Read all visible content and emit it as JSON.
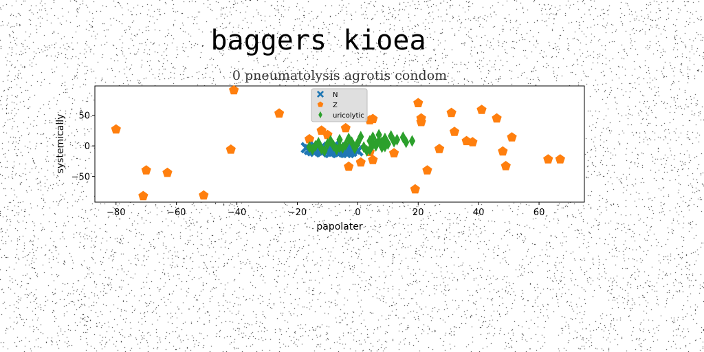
{
  "chart_data": {
    "type": "scatter",
    "title": "baggers kioea",
    "subtitle": "0 pneumatolysis agrotis condom",
    "xlabel": "papolater",
    "ylabel": "systemically",
    "xlim": [
      -87,
      75
    ],
    "ylim": [
      -92,
      98
    ],
    "xticks": [
      -80,
      -60,
      -40,
      -20,
      0,
      20,
      40,
      60
    ],
    "yticks": [
      -50,
      0,
      50
    ],
    "grid": false,
    "legend_position": "upper-center",
    "series": [
      {
        "name": "N",
        "marker": "x",
        "color": "#1f77b4",
        "points": [
          [
            -17,
            -3
          ],
          [
            -15,
            -8
          ],
          [
            -14,
            -2
          ],
          [
            -13,
            -6
          ],
          [
            -12,
            -10
          ],
          [
            -11,
            -4
          ],
          [
            -10,
            -8
          ],
          [
            -9,
            -3
          ],
          [
            -8,
            -9
          ],
          [
            -7,
            -5
          ],
          [
            -6,
            -10
          ],
          [
            -5,
            -4
          ],
          [
            -4,
            -7
          ],
          [
            -3,
            -2
          ],
          [
            -2,
            -9
          ],
          [
            -1,
            -5
          ],
          [
            0,
            -8
          ],
          [
            -16,
            -6
          ],
          [
            -12,
            -2
          ],
          [
            -9,
            -11
          ],
          [
            -6,
            -3
          ],
          [
            -3,
            -11
          ],
          [
            -14,
            -9
          ],
          [
            -8,
            -1
          ],
          [
            -5,
            -8
          ],
          [
            -1,
            -2
          ],
          [
            -11,
            -7
          ],
          [
            -7,
            -10
          ],
          [
            -2,
            -4
          ],
          [
            -4,
            -11
          ]
        ]
      },
      {
        "name": "Z",
        "marker": "pentagon",
        "color": "#ff7f0e",
        "points": [
          [
            -80,
            27
          ],
          [
            -71,
            -82
          ],
          [
            -70,
            -40
          ],
          [
            -63,
            -44
          ],
          [
            -51,
            -81
          ],
          [
            -42,
            -6
          ],
          [
            -41,
            91
          ],
          [
            -26,
            53
          ],
          [
            -16,
            11
          ],
          [
            -12,
            25
          ],
          [
            -10,
            18
          ],
          [
            -4,
            29
          ],
          [
            -3,
            -34
          ],
          [
            1,
            -27
          ],
          [
            4,
            42
          ],
          [
            4,
            -10
          ],
          [
            5,
            44
          ],
          [
            5,
            -23
          ],
          [
            12,
            -12
          ],
          [
            19,
            -71
          ],
          [
            20,
            70
          ],
          [
            21,
            45
          ],
          [
            21,
            39
          ],
          [
            23,
            -40
          ],
          [
            27,
            -5
          ],
          [
            31,
            54
          ],
          [
            32,
            23
          ],
          [
            36,
            8
          ],
          [
            38,
            6
          ],
          [
            41,
            59
          ],
          [
            46,
            45
          ],
          [
            48,
            -9
          ],
          [
            49,
            -33
          ],
          [
            51,
            14
          ],
          [
            63,
            -22
          ],
          [
            67,
            -22
          ]
        ]
      },
      {
        "name": "uricolytic",
        "marker": "diamond",
        "color": "#2ca02c",
        "points": [
          [
            -16,
            -2
          ],
          [
            -14,
            0
          ],
          [
            -12,
            -5
          ],
          [
            -10,
            3
          ],
          [
            -9,
            8
          ],
          [
            -7,
            -6
          ],
          [
            -6,
            10
          ],
          [
            -4,
            2
          ],
          [
            -3,
            12
          ],
          [
            -1,
            -4
          ],
          [
            0,
            5
          ],
          [
            1,
            15
          ],
          [
            3,
            -8
          ],
          [
            4,
            8
          ],
          [
            5,
            14
          ],
          [
            6,
            0
          ],
          [
            7,
            18
          ],
          [
            8,
            6
          ],
          [
            9,
            12
          ],
          [
            10,
            3
          ],
          [
            11,
            16
          ],
          [
            13,
            10
          ],
          [
            15,
            14
          ],
          [
            16,
            6
          ],
          [
            18,
            8
          ],
          [
            -11,
            -8
          ],
          [
            -8,
            0
          ],
          [
            -5,
            -3
          ],
          [
            -2,
            6
          ],
          [
            2,
            -2
          ],
          [
            4,
            -6
          ],
          [
            6,
            4
          ],
          [
            8,
            -2
          ],
          [
            -13,
            5
          ],
          [
            -15,
            -6
          ],
          [
            7,
            8
          ],
          [
            12,
            7
          ],
          [
            5,
            2
          ],
          [
            9,
            -1
          ],
          [
            -6,
            -2
          ]
        ]
      }
    ]
  }
}
